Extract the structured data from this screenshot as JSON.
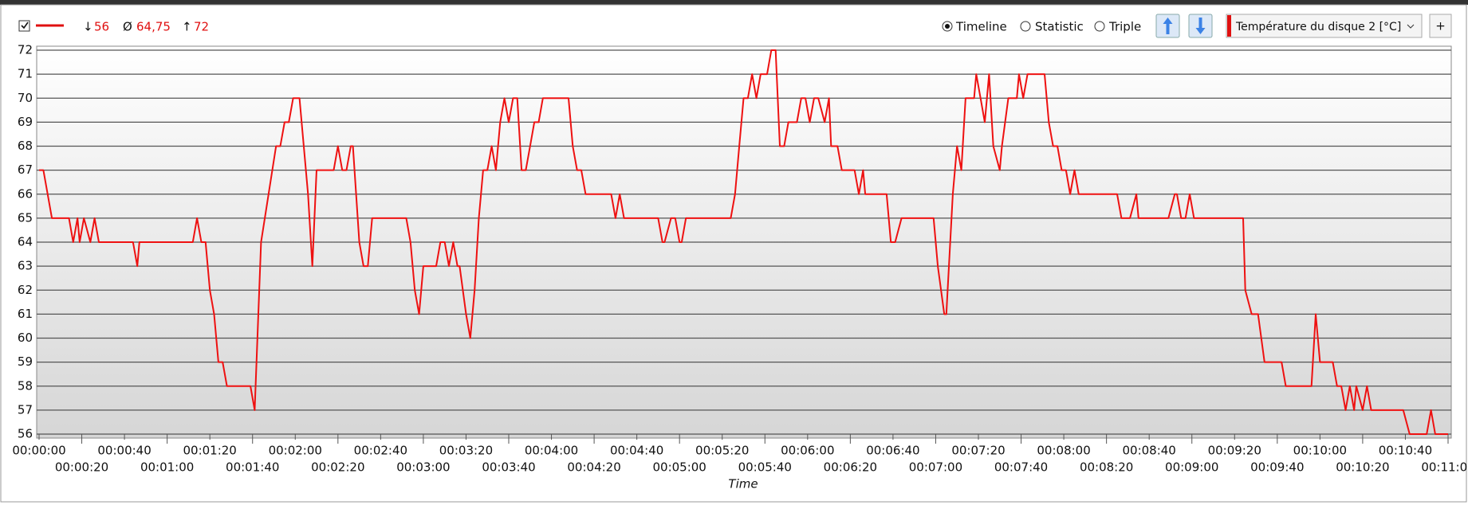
{
  "toolbar": {
    "min": {
      "symbol": "↓",
      "value": 56
    },
    "avg": {
      "symbol": "Ø",
      "value": 64.75,
      "label": "64,75"
    },
    "max": {
      "symbol": "↑",
      "value": 72
    },
    "views": [
      "Timeline",
      "Statistic",
      "Triple"
    ],
    "selected_view": "Timeline",
    "add_button": "+"
  },
  "chart_data": {
    "type": "line",
    "x_label": "Time",
    "x": [
      0,
      2,
      6,
      14,
      16,
      18,
      19,
      21,
      24,
      26,
      28,
      44,
      46,
      47,
      72,
      74,
      76,
      78,
      80,
      82,
      84,
      86,
      88,
      99,
      101,
      104,
      111,
      113,
      115,
      117,
      119,
      122,
      126,
      128,
      130,
      138,
      140,
      142,
      144,
      146,
      147,
      150,
      152,
      154,
      156,
      172,
      174,
      176,
      178,
      180,
      186,
      188,
      190,
      192,
      194,
      196,
      197,
      200,
      202,
      204,
      206,
      208,
      210,
      212,
      214,
      216,
      218,
      220,
      222,
      224,
      226,
      228,
      230,
      232,
      234,
      236,
      248,
      250,
      252,
      254,
      256,
      268,
      270,
      272,
      274,
      290,
      292,
      293,
      296,
      298,
      300,
      301,
      303,
      324,
      326,
      328,
      330,
      332,
      334,
      336,
      338,
      341,
      343,
      345,
      347,
      349,
      351,
      355,
      357,
      359,
      361,
      363,
      365,
      368,
      370,
      371,
      374,
      376,
      382,
      384,
      386,
      387,
      397,
      399,
      401,
      404,
      419,
      421,
      424,
      425,
      428,
      430,
      432,
      434,
      438,
      439,
      441,
      443,
      445,
      447,
      450,
      451,
      454,
      458,
      459,
      461,
      463,
      471,
      473,
      475,
      477,
      479,
      481,
      483,
      485,
      487,
      505,
      507,
      511,
      514,
      515,
      529,
      532,
      533,
      535,
      537,
      539,
      541,
      564,
      565,
      568,
      571,
      574,
      582,
      584,
      596,
      598,
      600,
      606,
      608,
      610,
      612,
      614,
      616,
      617,
      620,
      622,
      624,
      639,
      642,
      650,
      652,
      654,
      660
    ],
    "series": [
      {
        "name": "Température du disque 2 [°C]",
        "color": "#ee1111",
        "values": [
          67,
          67,
          65,
          65,
          64,
          65,
          64,
          65,
          64,
          65,
          64,
          64,
          63,
          64,
          64,
          65,
          64,
          64,
          62,
          61,
          59,
          59,
          58,
          58,
          57,
          64,
          68,
          68,
          69,
          69,
          70,
          70,
          66,
          63,
          67,
          67,
          68,
          67,
          67,
          68,
          68,
          64,
          63,
          63,
          65,
          65,
          64,
          62,
          61,
          63,
          63,
          64,
          64,
          63,
          64,
          63,
          63,
          61,
          60,
          62,
          65,
          67,
          67,
          68,
          67,
          69,
          70,
          69,
          70,
          70,
          67,
          67,
          68,
          69,
          69,
          70,
          70,
          68,
          67,
          67,
          66,
          66,
          65,
          66,
          65,
          65,
          64,
          64,
          65,
          65,
          64,
          64,
          65,
          65,
          66,
          68,
          70,
          70,
          71,
          70,
          71,
          71,
          72,
          72,
          68,
          68,
          69,
          69,
          70,
          70,
          69,
          70,
          70,
          69,
          70,
          68,
          68,
          67,
          67,
          66,
          67,
          66,
          66,
          64,
          64,
          65,
          65,
          63,
          61,
          61,
          66,
          68,
          67,
          70,
          70,
          71,
          70,
          69,
          71,
          68,
          67,
          68,
          70,
          70,
          71,
          70,
          71,
          71,
          69,
          68,
          68,
          67,
          67,
          66,
          67,
          66,
          66,
          65,
          65,
          66,
          65,
          65,
          66,
          66,
          65,
          65,
          66,
          65,
          65,
          62,
          61,
          61,
          59,
          59,
          58,
          58,
          61,
          59,
          59,
          58,
          58,
          57,
          58,
          57,
          58,
          57,
          58,
          57,
          57,
          56,
          56,
          57,
          56,
          56
        ]
      }
    ],
    "xlim": [
      0,
      660
    ],
    "xticks": [
      {
        "value": 0,
        "label": "00:00:00"
      },
      {
        "value": 20,
        "label": "00:00:20"
      },
      {
        "value": 40,
        "label": "00:00:40"
      },
      {
        "value": 60,
        "label": "00:01:00"
      },
      {
        "value": 80,
        "label": "00:01:20"
      },
      {
        "value": 100,
        "label": "00:01:40"
      },
      {
        "value": 120,
        "label": "00:02:00"
      },
      {
        "value": 140,
        "label": "00:02:20"
      },
      {
        "value": 160,
        "label": "00:02:40"
      },
      {
        "value": 180,
        "label": "00:03:00"
      },
      {
        "value": 200,
        "label": "00:03:20"
      },
      {
        "value": 220,
        "label": "00:03:40"
      },
      {
        "value": 240,
        "label": "00:04:00"
      },
      {
        "value": 260,
        "label": "00:04:20"
      },
      {
        "value": 280,
        "label": "00:04:40"
      },
      {
        "value": 300,
        "label": "00:05:00"
      },
      {
        "value": 320,
        "label": "00:05:20"
      },
      {
        "value": 340,
        "label": "00:05:40"
      },
      {
        "value": 360,
        "label": "00:06:00"
      },
      {
        "value": 380,
        "label": "00:06:20"
      },
      {
        "value": 400,
        "label": "00:06:40"
      },
      {
        "value": 420,
        "label": "00:07:00"
      },
      {
        "value": 440,
        "label": "00:07:20"
      },
      {
        "value": 460,
        "label": "00:07:40"
      },
      {
        "value": 480,
        "label": "00:08:00"
      },
      {
        "value": 500,
        "label": "00:08:20"
      },
      {
        "value": 520,
        "label": "00:08:40"
      },
      {
        "value": 540,
        "label": "00:09:00"
      },
      {
        "value": 560,
        "label": "00:09:20"
      },
      {
        "value": 580,
        "label": "00:09:40"
      },
      {
        "value": 600,
        "label": "00:10:00"
      },
      {
        "value": 620,
        "label": "00:10:20"
      },
      {
        "value": 640,
        "label": "00:10:40"
      },
      {
        "value": 660,
        "label": "00:11:00"
      }
    ],
    "ylim": [
      56,
      72
    ],
    "yticks": [
      56,
      57,
      58,
      59,
      60,
      61,
      62,
      63,
      64,
      65,
      66,
      67,
      68,
      69,
      70,
      71,
      72
    ],
    "grid": true
  }
}
